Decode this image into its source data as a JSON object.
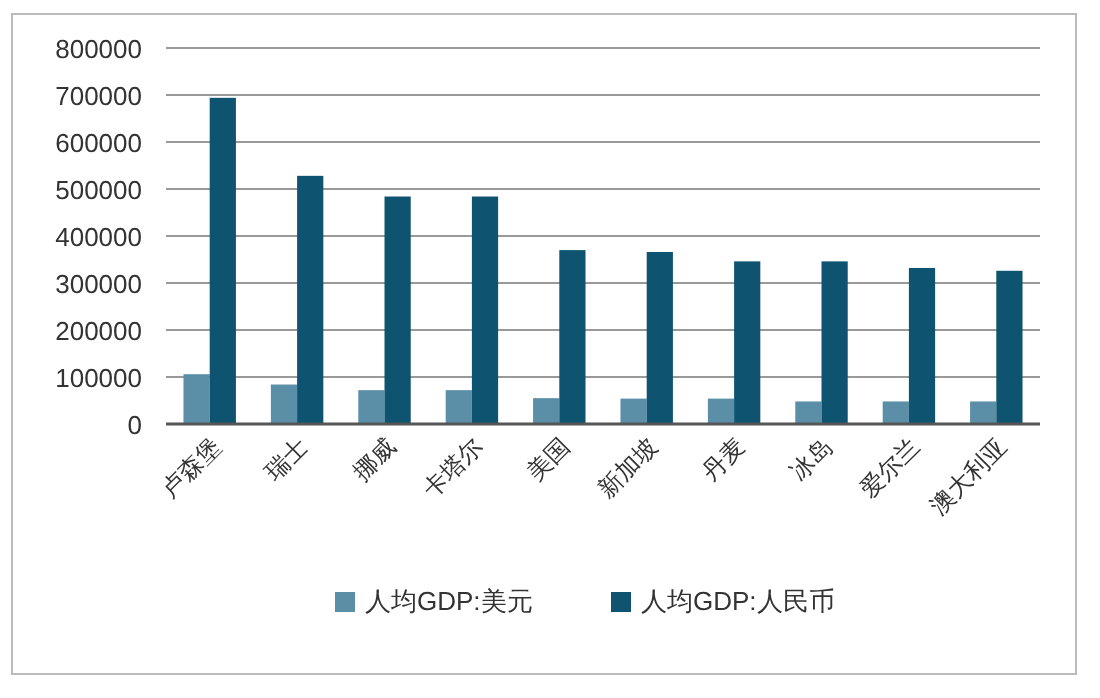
{
  "chart_data": {
    "type": "bar",
    "categories": [
      "卢森堡",
      "瑞士",
      "挪威",
      "卡塔尔",
      "美国",
      "新加坡",
      "丹麦",
      "冰岛",
      "爱尔兰",
      "澳大利亚"
    ],
    "series": [
      {
        "name": "人均GDP:美元",
        "color": "#5b8fa8",
        "values": [
          106000,
          84000,
          72000,
          72000,
          55000,
          54000,
          54000,
          48000,
          48000,
          48000
        ]
      },
      {
        "name": "人均GDP:人民币",
        "color": "#0e5470",
        "values": [
          694000,
          528000,
          484000,
          484000,
          370000,
          366000,
          346000,
          346000,
          332000,
          326000
        ]
      }
    ],
    "ylim": [
      0,
      800000
    ],
    "yticks": [
      0,
      100000,
      200000,
      300000,
      400000,
      500000,
      600000,
      700000,
      800000
    ],
    "grid": "y",
    "legend": "bottom"
  }
}
